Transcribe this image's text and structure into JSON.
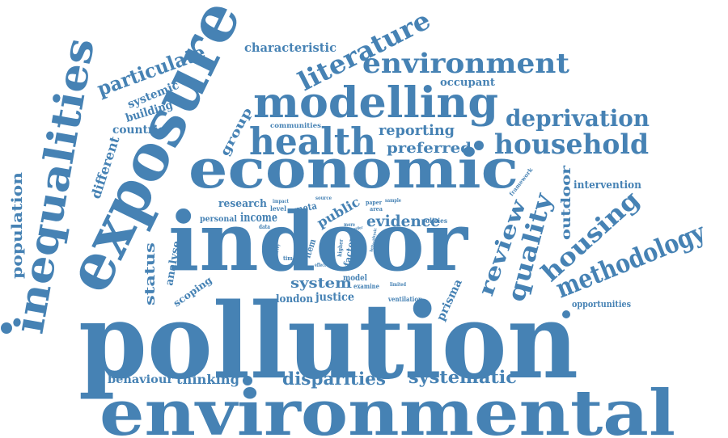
{
  "word_cloud": {
    "color": "#4682b4",
    "words": [
      "pollution",
      "environmental",
      "indoor",
      "economic",
      "exposure",
      "inequalities",
      "modelling",
      "health",
      "environment",
      "literature",
      "household",
      "deprivation",
      "methodology",
      "housing",
      "quality",
      "review",
      "particulate",
      "evidence",
      "systematic",
      "disparities",
      "population",
      "characteristic",
      "reporting",
      "preferred",
      "intervention",
      "outdoor",
      "income",
      "public",
      "system",
      "justice",
      "london",
      "status",
      "prisma",
      "different",
      "group",
      "systemic",
      "building",
      "countrie",
      "occupant",
      "behaviour",
      "thinking",
      "analyse",
      "scoping",
      "opportunities",
      "research",
      "personal",
      "communities",
      "meta",
      "model",
      "factor",
      "item",
      "policies",
      "framework",
      "examine",
      "ventilation",
      "higher",
      "impact",
      "level",
      "data",
      "time",
      "source",
      "paper",
      "sample",
      "area",
      "physic",
      "limited",
      "effect",
      "survey",
      "order",
      "better",
      "more"
    ]
  }
}
